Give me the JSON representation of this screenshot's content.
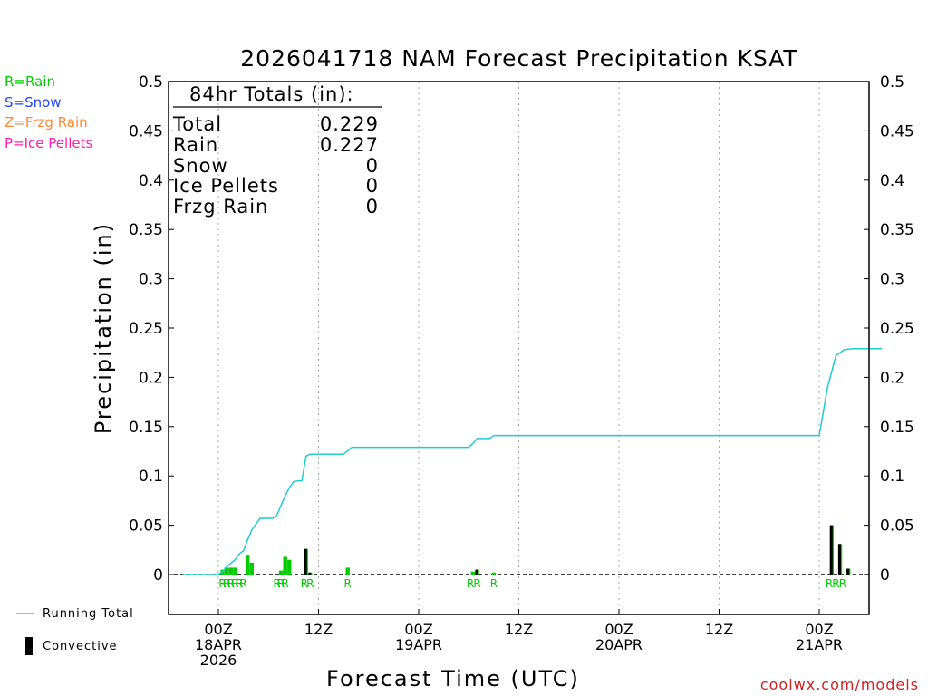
{
  "chart_data": {
    "type": "bar",
    "title": "2026041718 NAM Forecast Precipitation KSAT",
    "xlabel": "Forecast Time (UTC)",
    "ylabel": "Precipitation (in)",
    "ylim": [
      -0.04,
      0.5
    ],
    "yticks": [
      0,
      0.05,
      0.1,
      0.15,
      0.2,
      0.25,
      0.3,
      0.35,
      0.4,
      0.45,
      0.5
    ],
    "ytick_labels": [
      "0",
      "0.05",
      "0.1",
      "0.15",
      "0.2",
      "0.25",
      "0.3",
      "0.35",
      "0.4",
      "0.45",
      "0.5"
    ],
    "xlim_hours": [
      -4.3,
      79.5
    ],
    "x_ticks": [
      {
        "hour": 0,
        "lines": [
          "00Z",
          "18APR",
          "2026"
        ]
      },
      {
        "hour": 12,
        "lines": [
          "12Z"
        ]
      },
      {
        "hour": 24,
        "lines": [
          "00Z",
          "19APR"
        ]
      },
      {
        "hour": 36,
        "lines": [
          "12Z"
        ]
      },
      {
        "hour": 48,
        "lines": [
          "00Z",
          "20APR"
        ]
      },
      {
        "hour": 60,
        "lines": [
          "12Z"
        ]
      },
      {
        "hour": 72,
        "lines": [
          "00Z",
          "21APR"
        ]
      }
    ],
    "precip_type_legend": [
      {
        "label": "R=Rain",
        "color": "#00cc00"
      },
      {
        "label": "S=Snow",
        "color": "#2244ff"
      },
      {
        "label": "Z=Frzg Rain",
        "color": "#ff8833"
      },
      {
        "label": "P=Ice Pellets",
        "color": "#ff22aa"
      }
    ],
    "series_legend": {
      "running_total": "Running Total",
      "convective": "Convective"
    },
    "series_colors": {
      "rain": "#00cc00",
      "convective": "#000000",
      "running_total": "#22cccc"
    },
    "totals": {
      "header": "84hr Totals (in):",
      "rows": [
        {
          "label": "Total",
          "value": "0.229"
        },
        {
          "label": "Rain",
          "value": "0.227"
        },
        {
          "label": "Snow",
          "value": "0"
        },
        {
          "label": "Ice Pellets",
          "value": "0"
        },
        {
          "label": "Frzg Rain",
          "value": "0"
        }
      ]
    },
    "precip_bars": [
      {
        "hour": 0.5,
        "value": 0.005,
        "type": "R"
      },
      {
        "hour": 1,
        "value": 0.007,
        "type": "R"
      },
      {
        "hour": 1.5,
        "value": 0.007,
        "type": "R"
      },
      {
        "hour": 2,
        "value": 0.007,
        "type": "R"
      },
      {
        "hour": 3.5,
        "value": 0.02,
        "type": "R"
      },
      {
        "hour": 4,
        "value": 0.012,
        "type": "R"
      },
      {
        "hour": 7.5,
        "value": 0.004,
        "type": "R"
      },
      {
        "hour": 8,
        "value": 0.018,
        "type": "R"
      },
      {
        "hour": 8.5,
        "value": 0.015,
        "type": "R"
      },
      {
        "hour": 10.5,
        "value": 0.026,
        "type": "R"
      },
      {
        "hour": 11,
        "value": 0.002,
        "type": "R"
      },
      {
        "hour": 15.5,
        "value": 0.007,
        "type": "R"
      },
      {
        "hour": 30.5,
        "value": 0.003,
        "type": "R"
      },
      {
        "hour": 31,
        "value": 0.005,
        "type": "R"
      },
      {
        "hour": 33,
        "value": 0.002,
        "type": "R"
      },
      {
        "hour": 73.5,
        "value": 0.05,
        "type": "R"
      },
      {
        "hour": 74.5,
        "value": 0.031,
        "type": "R"
      },
      {
        "hour": 75.5,
        "value": 0.006,
        "type": "R"
      }
    ],
    "convective_bars": [
      {
        "hour": 10.5,
        "value": 0.026
      },
      {
        "hour": 11,
        "value": 0.002
      },
      {
        "hour": 31,
        "value": 0.005
      },
      {
        "hour": 73.5,
        "value": 0.05
      },
      {
        "hour": 74.5,
        "value": 0.031
      },
      {
        "hour": 75.5,
        "value": 0.006
      }
    ],
    "type_markers": [
      {
        "hour": 0.5,
        "label": "R"
      },
      {
        "hour": 1,
        "label": "R"
      },
      {
        "hour": 1.5,
        "label": "R"
      },
      {
        "hour": 2,
        "label": "R"
      },
      {
        "hour": 2.5,
        "label": "R"
      },
      {
        "hour": 3,
        "label": "R"
      },
      {
        "hour": 7,
        "label": "R"
      },
      {
        "hour": 7.5,
        "label": "R"
      },
      {
        "hour": 8,
        "label": "R"
      },
      {
        "hour": 10.3,
        "label": "R"
      },
      {
        "hour": 11,
        "label": "R"
      },
      {
        "hour": 15.5,
        "label": "R"
      },
      {
        "hour": 30.2,
        "label": "R"
      },
      {
        "hour": 31,
        "label": "R"
      },
      {
        "hour": 33,
        "label": "R"
      },
      {
        "hour": 73.2,
        "label": "R"
      },
      {
        "hour": 74,
        "label": "R"
      },
      {
        "hour": 74.8,
        "label": "R"
      }
    ],
    "running_total": {
      "hours": [
        -4.3,
        0,
        0.5,
        1,
        2,
        2.5,
        3,
        3.5,
        4,
        5,
        6,
        6.5,
        7,
        7.5,
        8,
        8.5,
        9,
        9.5,
        10,
        10.5,
        11,
        12,
        13,
        15,
        16,
        18,
        24,
        30,
        30.5,
        31,
        32,
        32.5,
        33,
        36,
        48,
        60,
        65,
        68,
        72,
        73,
        74,
        75,
        76,
        77,
        79.5
      ],
      "values": [
        0,
        0,
        0.003,
        0.008,
        0.015,
        0.021,
        0.024,
        0.035,
        0.045,
        0.057,
        0.057,
        0.057,
        0.06,
        0.07,
        0.08,
        0.088,
        0.094,
        0.095,
        0.095,
        0.12,
        0.122,
        0.122,
        0.122,
        0.122,
        0.129,
        0.129,
        0.129,
        0.129,
        0.133,
        0.138,
        0.138,
        0.138,
        0.141,
        0.141,
        0.141,
        0.141,
        0.141,
        0.141,
        0.141,
        0.19,
        0.222,
        0.228,
        0.229,
        0.229,
        0.229
      ]
    }
  },
  "credit": "coolwx.com/models"
}
